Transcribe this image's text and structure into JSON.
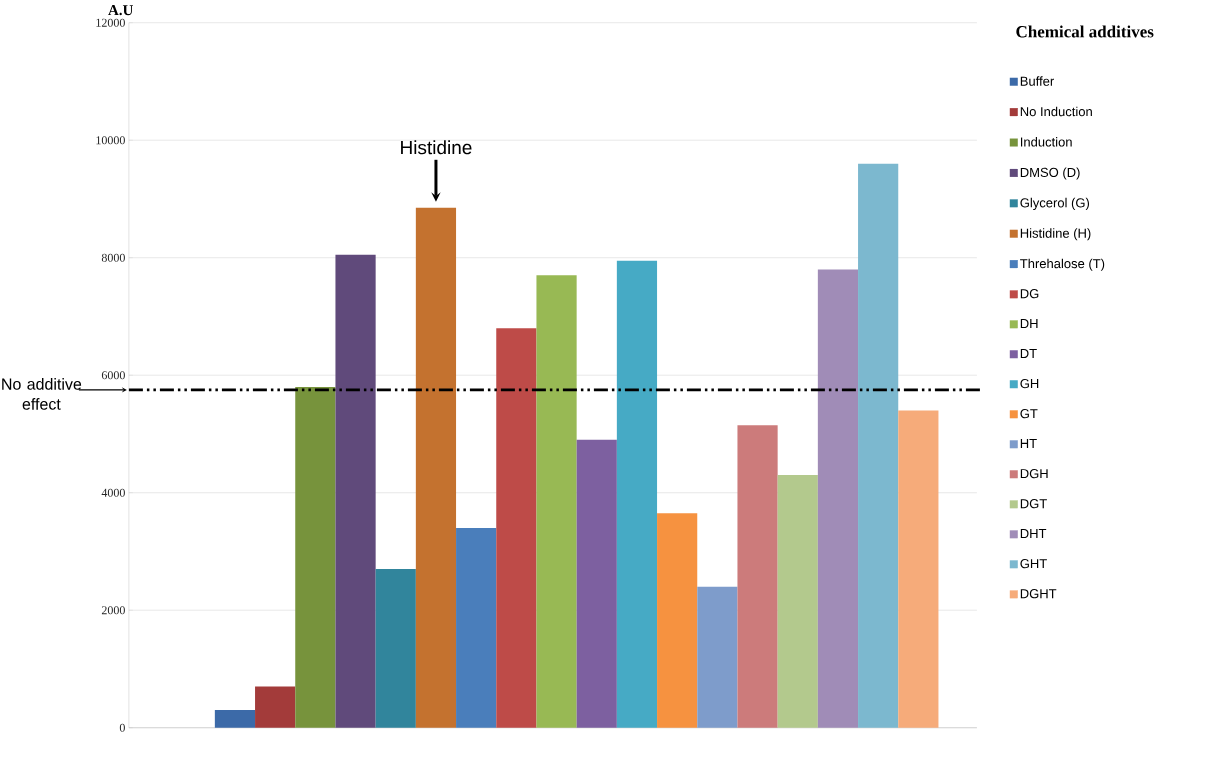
{
  "chart_data": {
    "type": "bar",
    "ylabel": "A.U",
    "legend_title": "Chemical additives",
    "categories": [
      null
    ],
    "series": [
      {
        "name": "Buffer",
        "color": "#3c6aa8",
        "values": [
          300
        ]
      },
      {
        "name": "No Induction",
        "color": "#a33b3a",
        "values": [
          700
        ]
      },
      {
        "name": "Induction",
        "color": "#77933c",
        "values": [
          5800
        ]
      },
      {
        "name": "DMSO (D)",
        "color": "#604a7b",
        "values": [
          8050
        ]
      },
      {
        "name": "Glycerol (G)",
        "color": "#31859c",
        "values": [
          2700
        ]
      },
      {
        "name": "Histidine (H)",
        "color": "#c4722f",
        "values": [
          8850
        ]
      },
      {
        "name": "Threhalose (T)",
        "color": "#4a7ebb",
        "values": [
          3400
        ]
      },
      {
        "name": "DG",
        "color": "#be4b48",
        "values": [
          6800
        ]
      },
      {
        "name": "DH",
        "color": "#98b954",
        "values": [
          7700
        ]
      },
      {
        "name": "DT",
        "color": "#7d60a0",
        "values": [
          4900
        ]
      },
      {
        "name": "GH",
        "color": "#46aac5",
        "values": [
          7950
        ]
      },
      {
        "name": "GT",
        "color": "#f69240",
        "values": [
          3650
        ]
      },
      {
        "name": "HT",
        "color": "#7e9ccb",
        "values": [
          2400
        ]
      },
      {
        "name": "DGH",
        "color": "#cc7b7b",
        "values": [
          5150
        ]
      },
      {
        "name": "DGT",
        "color": "#b3c98d",
        "values": [
          4300
        ]
      },
      {
        "name": "DHT",
        "color": "#a08cb7",
        "values": [
          7800
        ]
      },
      {
        "name": "GHT",
        "color": "#7cb8cf",
        "values": [
          9600
        ]
      },
      {
        "name": "DGHT",
        "color": "#f6ab7a",
        "values": [
          5400
        ]
      }
    ],
    "ylim": [
      0,
      12000
    ],
    "yticks": [
      0,
      2000,
      4000,
      6000,
      8000,
      10000,
      12000
    ],
    "grid": "y",
    "legend": "right",
    "ref_lines": [
      {
        "axis": "y",
        "value": 5750,
        "label": "No additive effect",
        "color": "#000000",
        "line_style": "dashed"
      }
    ],
    "annotations": [
      "Histidine"
    ]
  }
}
